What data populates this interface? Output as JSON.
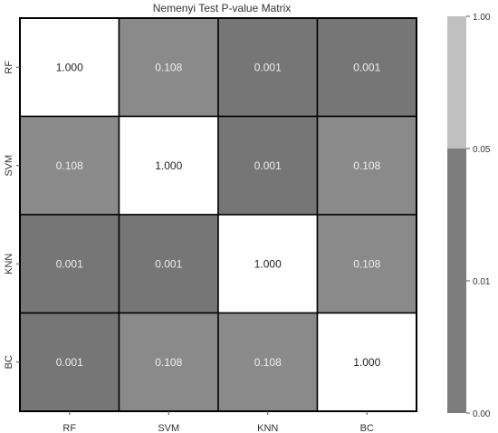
{
  "chart_data": {
    "type": "heatmap",
    "title": "Nemenyi Test P-value Matrix",
    "xlabel": "",
    "ylabel": "",
    "x_categories": [
      "RF",
      "SVM",
      "KNN",
      "BC"
    ],
    "y_categories": [
      "RF",
      "SVM",
      "KNN",
      "BC"
    ],
    "values": [
      [
        1.0,
        0.108,
        0.001,
        0.001
      ],
      [
        0.108,
        1.0,
        0.001,
        0.108
      ],
      [
        0.001,
        0.001,
        1.0,
        0.108
      ],
      [
        0.001,
        0.108,
        0.108,
        1.0
      ]
    ],
    "value_labels": [
      [
        "1.000",
        "0.108",
        "0.001",
        "0.001"
      ],
      [
        "0.108",
        "1.000",
        "0.001",
        "0.108"
      ],
      [
        "0.001",
        "0.001",
        "1.000",
        "0.108"
      ],
      [
        "0.001",
        "0.108",
        "0.108",
        "1.000"
      ]
    ],
    "colorbar": {
      "tick_labels": [
        "0.00",
        "0.01",
        "0.05",
        "1.00"
      ],
      "tick_values": [
        0.0,
        0.01,
        0.05,
        1.0
      ],
      "bands": [
        {
          "from": 0.0,
          "to": 0.05,
          "color": "#7d7d7d"
        },
        {
          "from": 0.05,
          "to": 1.0,
          "color": "#c0c0c0"
        }
      ]
    },
    "cell_colors": {
      "diagonal": "#ffffff",
      "p_0.108": "#8a8a8a",
      "p_0.001": "#767676"
    },
    "label_colors": {
      "dark_cell": "#eeeeee",
      "light_cell": "#222222"
    },
    "grid": true,
    "legend": "colorbar-right"
  }
}
